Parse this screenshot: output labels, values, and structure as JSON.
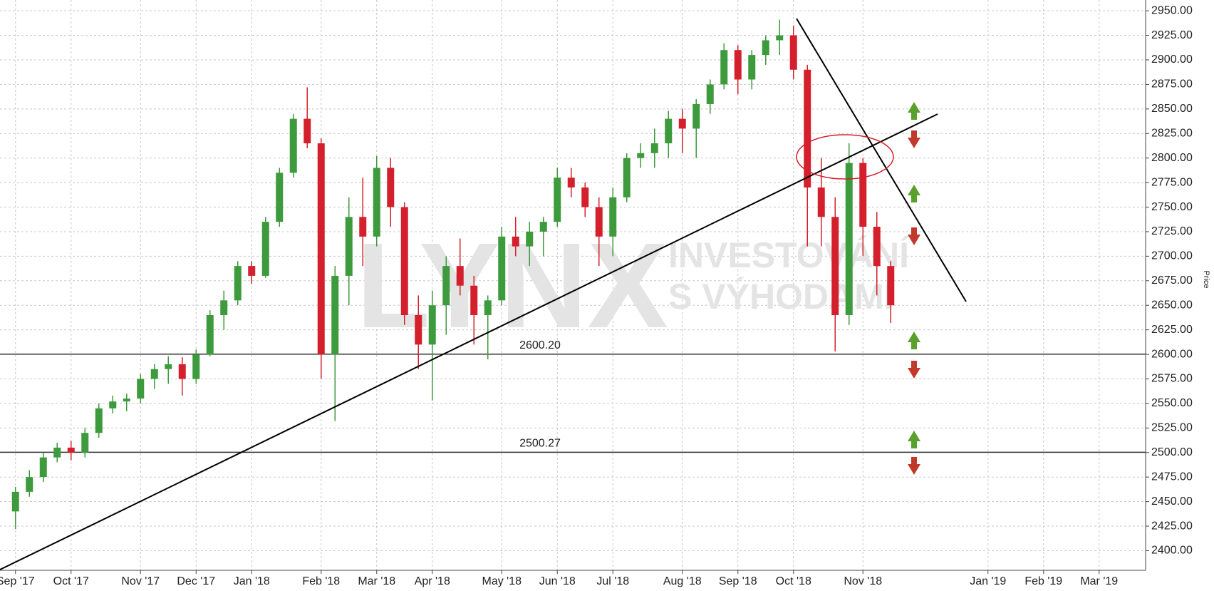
{
  "chart_data": {
    "type": "candlestick",
    "y_axis_label": "Price",
    "watermark": {
      "logo": "LYNX",
      "line1": "INVESTOVÁNÍ",
      "line2": "S VÝHODAMI"
    },
    "categories": [
      "Sep '17",
      null,
      null,
      null,
      "Oct '17",
      null,
      null,
      null,
      null,
      "Nov '17",
      null,
      null,
      null,
      "Dec '17",
      null,
      null,
      null,
      "Jan '18",
      null,
      null,
      null,
      null,
      "Feb '18",
      null,
      null,
      null,
      "Mar '18",
      null,
      null,
      null,
      "Apr '18",
      null,
      null,
      null,
      null,
      "May '18",
      null,
      null,
      null,
      "Jun '18",
      null,
      null,
      null,
      "Jul '18",
      null,
      null,
      null,
      null,
      "Aug '18",
      null,
      null,
      null,
      "Sep '18",
      null,
      null,
      null,
      "Oct '18",
      null,
      null,
      null,
      null,
      "Nov '18",
      null,
      null,
      null,
      null,
      null,
      null,
      null,
      null,
      "Jan '19",
      null,
      null,
      null,
      "Feb '19",
      null,
      null,
      null,
      "Mar '19",
      null
    ],
    "open": [
      2440,
      2460,
      2475,
      2495,
      2505,
      2500,
      2520,
      2545,
      2552,
      2555,
      2575,
      2585,
      2590,
      2575,
      2600,
      2640,
      2655,
      2690,
      2680,
      2735,
      2785,
      2840,
      2815,
      2600,
      2680,
      2740,
      2720,
      2790,
      2750,
      2640,
      2610,
      2650,
      2690,
      2670,
      2640,
      2655,
      2720,
      2710,
      2725,
      2735,
      2780,
      2770,
      2750,
      2720,
      2760,
      2800,
      2805,
      2815,
      2840,
      2830,
      2855,
      2875,
      2910,
      2880,
      2905,
      2920,
      2925,
      2890,
      2770,
      2740,
      2640,
      2795,
      2730,
      2690,
      null,
      null,
      null,
      null,
      null,
      null,
      null,
      null,
      null,
      null,
      null,
      null,
      null,
      null,
      null,
      null
    ],
    "high": [
      2465,
      2482,
      2500,
      2510,
      2512,
      2525,
      2550,
      2558,
      2560,
      2580,
      2590,
      2598,
      2597,
      2605,
      2645,
      2665,
      2695,
      2695,
      2740,
      2790,
      2845,
      2872,
      2820,
      2690,
      2760,
      2780,
      2802,
      2800,
      2755,
      2660,
      2665,
      2700,
      2718,
      2680,
      2660,
      2730,
      2740,
      2735,
      2740,
      2790,
      2790,
      2775,
      2760,
      2770,
      2805,
      2815,
      2830,
      2848,
      2850,
      2860,
      2880,
      2917,
      2915,
      2910,
      2925,
      2941,
      2935,
      2895,
      2800,
      2760,
      2815,
      2800,
      2745,
      2695,
      null,
      null,
      null,
      null,
      null,
      null,
      null,
      null,
      null,
      null,
      null,
      null,
      null,
      null,
      null,
      null
    ],
    "low": [
      2422,
      2455,
      2470,
      2490,
      2492,
      2495,
      2515,
      2540,
      2542,
      2550,
      2565,
      2570,
      2558,
      2570,
      2598,
      2625,
      2650,
      2672,
      2678,
      2730,
      2780,
      2810,
      2575,
      2532,
      2650,
      2690,
      2710,
      2730,
      2630,
      2585,
      2553,
      2620,
      2660,
      2610,
      2595,
      2650,
      2700,
      2690,
      2700,
      2730,
      2760,
      2740,
      2690,
      2700,
      2755,
      2790,
      2790,
      2800,
      2805,
      2800,
      2845,
      2870,
      2865,
      2870,
      2895,
      2905,
      2880,
      2710,
      2710,
      2603,
      2630,
      2700,
      2660,
      2632,
      null,
      null,
      null,
      null,
      null,
      null,
      null,
      null,
      null,
      null,
      null,
      null,
      null,
      null,
      null,
      null
    ],
    "close": [
      2460,
      2475,
      2495,
      2505,
      2500,
      2520,
      2545,
      2552,
      2555,
      2575,
      2585,
      2590,
      2575,
      2600,
      2640,
      2655,
      2690,
      2680,
      2735,
      2785,
      2840,
      2815,
      2600,
      2680,
      2740,
      2720,
      2790,
      2750,
      2640,
      2610,
      2650,
      2690,
      2670,
      2640,
      2655,
      2720,
      2710,
      2725,
      2735,
      2780,
      2770,
      2750,
      2720,
      2760,
      2800,
      2805,
      2815,
      2840,
      2830,
      2855,
      2875,
      2910,
      2880,
      2905,
      2920,
      2925,
      2890,
      2770,
      2740,
      2640,
      2795,
      2730,
      2690,
      2650,
      null,
      null,
      null,
      null,
      null,
      null,
      null,
      null,
      null,
      null,
      null,
      null,
      null,
      null,
      null,
      null
    ],
    "up_color": "#3d9a3d",
    "down_color": "#d3202c",
    "hlines": [
      {
        "value": 2600.2,
        "label": "2600.20"
      },
      {
        "value": 2500.27,
        "label": "2500.27"
      }
    ],
    "ylim": [
      2380,
      2961
    ],
    "yticks": [
      {
        "value": 2400,
        "label": "2400.00"
      },
      {
        "value": 2425,
        "label": "2425.00"
      },
      {
        "value": 2450,
        "label": "2450.00"
      },
      {
        "value": 2475,
        "label": "2475.00"
      },
      {
        "value": 2500,
        "label": "2500.00"
      },
      {
        "value": 2525,
        "label": "2525.00"
      },
      {
        "value": 2550,
        "label": "2550.00"
      },
      {
        "value": 2575,
        "label": "2575.00"
      },
      {
        "value": 2600,
        "label": "2600.00"
      },
      {
        "value": 2625,
        "label": "2625.00"
      },
      {
        "value": 2650,
        "label": "2650.00"
      },
      {
        "value": 2675,
        "label": "2675.00"
      },
      {
        "value": 2700,
        "label": "2700.00"
      },
      {
        "value": 2725,
        "label": "2725.00"
      },
      {
        "value": 2750,
        "label": "2750.00"
      },
      {
        "value": 2775,
        "label": "2775.00"
      },
      {
        "value": 2800,
        "label": "2800.00"
      },
      {
        "value": 2825,
        "label": "2825.00"
      },
      {
        "value": 2850,
        "label": "2850.00"
      },
      {
        "value": 2875,
        "label": "2875.00"
      },
      {
        "value": 2900,
        "label": "2900.00"
      },
      {
        "value": 2925,
        "label": "2925.00"
      },
      {
        "value": 2950,
        "label": "2950.00"
      }
    ],
    "grid": true
  }
}
